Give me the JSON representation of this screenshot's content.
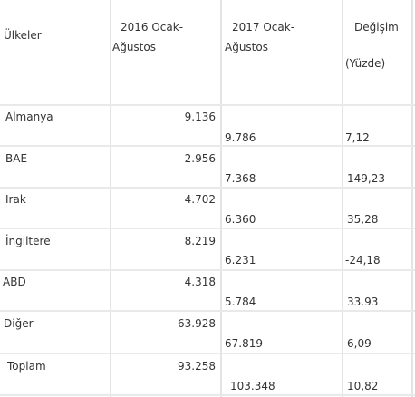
{
  "headers": {
    "country": "Ülkeler",
    "y2016_line1": "2016 Ocak-",
    "y2016_line2": "Ağustos",
    "y2017_line1": "2017 Ocak-",
    "y2017_line2": "Ağustos",
    "change_line1": "Değişim",
    "change_line2": "(Yüzde)"
  },
  "rows": [
    {
      "country": "Almanya",
      "v2016": "9.136",
      "v2017": "9.786",
      "change": "7,12"
    },
    {
      "country": "BAE",
      "v2016": "2.956",
      "v2017": "7.368",
      "change": "149,23"
    },
    {
      "country": "Irak",
      "v2016": "4.702",
      "v2017": "6.360",
      "change": "35,28"
    },
    {
      "country": "İngiltere",
      "v2016": "8.219",
      "v2017": "6.231",
      "change": "-24,18"
    },
    {
      "country": "ABD",
      "v2016": "4.318",
      "v2017": "5.784",
      "change": "33.93"
    },
    {
      "country": "Diğer",
      "v2016": "63.928",
      "v2017": "67.819",
      "change": "6,09"
    },
    {
      "country": "Toplam",
      "v2016": "93.258",
      "v2017": "103.348",
      "change": "10,82"
    }
  ]
}
